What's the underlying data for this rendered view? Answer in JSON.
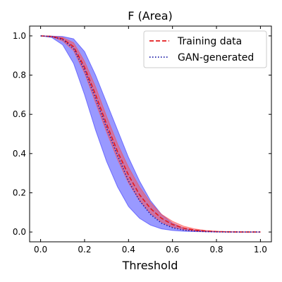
{
  "chart_data": {
    "type": "line",
    "title": "F (Area)",
    "xlabel": "Threshold",
    "ylabel": "",
    "xlim": [
      -0.05,
      1.05
    ],
    "ylim": [
      -0.05,
      1.05
    ],
    "x_ticks": [
      "0.0",
      "0.2",
      "0.4",
      "0.6",
      "0.8",
      "1.0"
    ],
    "y_ticks": [
      "0.0",
      "0.2",
      "0.4",
      "0.6",
      "0.8",
      "1.0"
    ],
    "grid": false,
    "legend_position": "upper-right",
    "x": [
      0.0,
      0.05,
      0.1,
      0.15,
      0.2,
      0.25,
      0.3,
      0.35,
      0.4,
      0.45,
      0.5,
      0.55,
      0.6,
      0.65,
      0.7,
      0.75,
      0.8,
      0.85,
      0.9,
      0.95,
      1.0
    ],
    "series": [
      {
        "name": "Training data",
        "style": "dashed",
        "color": "#e41a1c",
        "values": [
          1.0,
          0.997,
          0.985,
          0.945,
          0.84,
          0.7,
          0.55,
          0.41,
          0.29,
          0.19,
          0.12,
          0.07,
          0.038,
          0.02,
          0.01,
          0.005,
          0.002,
          0.001,
          0.0,
          0.0,
          0.0
        ],
        "band_lower": [
          1.0,
          0.995,
          0.975,
          0.925,
          0.81,
          0.66,
          0.51,
          0.37,
          0.25,
          0.16,
          0.095,
          0.05,
          0.025,
          0.012,
          0.005,
          0.002,
          0.001,
          0.0,
          0.0,
          0.0,
          0.0
        ],
        "band_upper": [
          1.0,
          0.999,
          0.992,
          0.965,
          0.87,
          0.74,
          0.59,
          0.45,
          0.33,
          0.23,
          0.15,
          0.09,
          0.055,
          0.03,
          0.016,
          0.008,
          0.004,
          0.002,
          0.001,
          0.0,
          0.0
        ],
        "band_color": "#ff4d4d"
      },
      {
        "name": "GAN-generated",
        "style": "dotted",
        "color": "#1a1aa6",
        "values": [
          1.0,
          0.997,
          0.982,
          0.935,
          0.825,
          0.68,
          0.53,
          0.39,
          0.26,
          0.16,
          0.09,
          0.045,
          0.022,
          0.01,
          0.005,
          0.002,
          0.001,
          0.0,
          0.0,
          0.0,
          0.0
        ],
        "band_lower": [
          1.0,
          0.992,
          0.955,
          0.86,
          0.7,
          0.52,
          0.36,
          0.23,
          0.13,
          0.07,
          0.035,
          0.016,
          0.008,
          0.004,
          0.002,
          0.001,
          0.0,
          0.0,
          0.0,
          0.0,
          0.0
        ],
        "band_upper": [
          1.0,
          0.999,
          0.997,
          0.985,
          0.92,
          0.8,
          0.66,
          0.52,
          0.38,
          0.26,
          0.16,
          0.09,
          0.045,
          0.02,
          0.01,
          0.005,
          0.002,
          0.001,
          0.0,
          0.0,
          0.0
        ],
        "band_color": "#3333ff"
      }
    ]
  }
}
